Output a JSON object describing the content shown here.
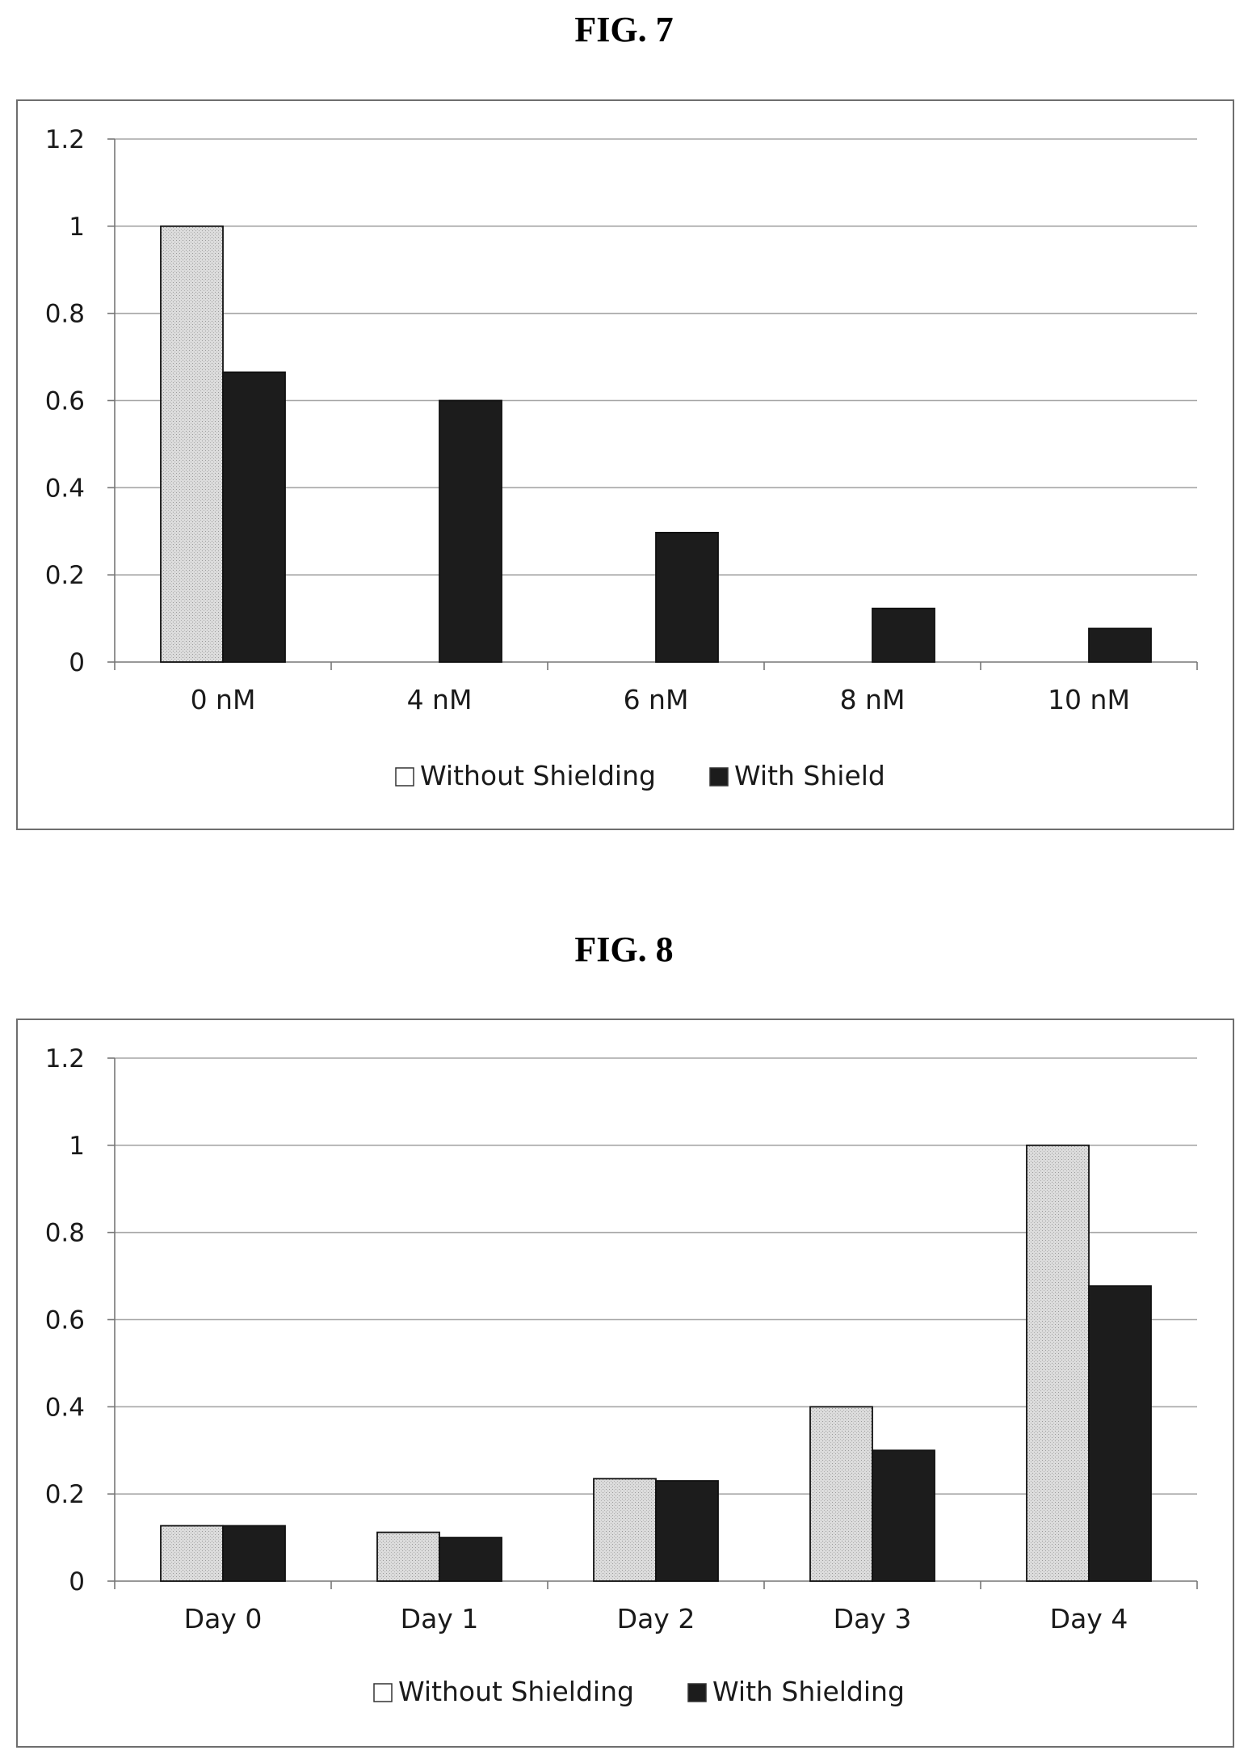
{
  "figures": [
    {
      "title": "FIG. 7"
    },
    {
      "title": "FIG. 8"
    }
  ],
  "colors": {
    "without": "#dcdcdc",
    "with": "#1c1c1c",
    "grid": "#a6a6a6",
    "axis": "#777777"
  },
  "chart_data": [
    {
      "type": "bar",
      "title": "",
      "xlabel": "",
      "ylabel": "",
      "ylim": [
        0,
        1.2
      ],
      "yticks": [
        "0",
        "0.2",
        "0.4",
        "0.6",
        "0.8",
        "1",
        "1.2"
      ],
      "grid": true,
      "legend_position": "bottom",
      "categories": [
        "0 nM",
        "4 nM",
        "6 nM",
        "8 nM",
        "10 nM"
      ],
      "series": [
        {
          "name": "Without Shielding",
          "values": [
            1.0,
            0,
            0,
            0,
            0
          ]
        },
        {
          "name": "With Shield",
          "values": [
            0.665,
            0.6,
            0.297,
            0.123,
            0.077
          ]
        }
      ]
    },
    {
      "type": "bar",
      "title": "",
      "xlabel": "",
      "ylabel": "",
      "ylim": [
        0,
        1.2
      ],
      "yticks": [
        "0",
        "0.2",
        "0.4",
        "0.6",
        "0.8",
        "1",
        "1.2"
      ],
      "grid": true,
      "legend_position": "bottom",
      "categories": [
        "Day 0",
        "Day 1",
        "Day 2",
        "Day 3",
        "Day 4"
      ],
      "series": [
        {
          "name": "Without Shielding",
          "values": [
            0.127,
            0.112,
            0.235,
            0.4,
            1.0
          ]
        },
        {
          "name": "With Shielding",
          "values": [
            0.127,
            0.1,
            0.23,
            0.3,
            0.677
          ]
        }
      ]
    }
  ]
}
